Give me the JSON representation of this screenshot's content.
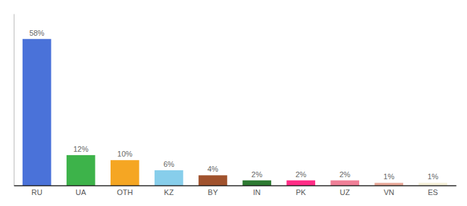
{
  "chart_data": {
    "type": "bar",
    "categories": [
      "RU",
      "UA",
      "OTH",
      "KZ",
      "BY",
      "IN",
      "PK",
      "UZ",
      "VN",
      "ES"
    ],
    "values": [
      58,
      12,
      10,
      6,
      4,
      2,
      2,
      2,
      1,
      1
    ],
    "value_labels": [
      "58%",
      "12%",
      "10%",
      "6%",
      "4%",
      "2%",
      "2%",
      "2%",
      "1%",
      "1%"
    ],
    "colors": [
      "#4a72d9",
      "#3db34a",
      "#f5a623",
      "#87ceeb",
      "#a0522d",
      "#2d7a32",
      "#ff2d87",
      "#f08098",
      "#e8a898",
      "#f5f0d8"
    ],
    "ylim": [
      0,
      68
    ],
    "data_labels": true,
    "tick_labels": "x"
  }
}
